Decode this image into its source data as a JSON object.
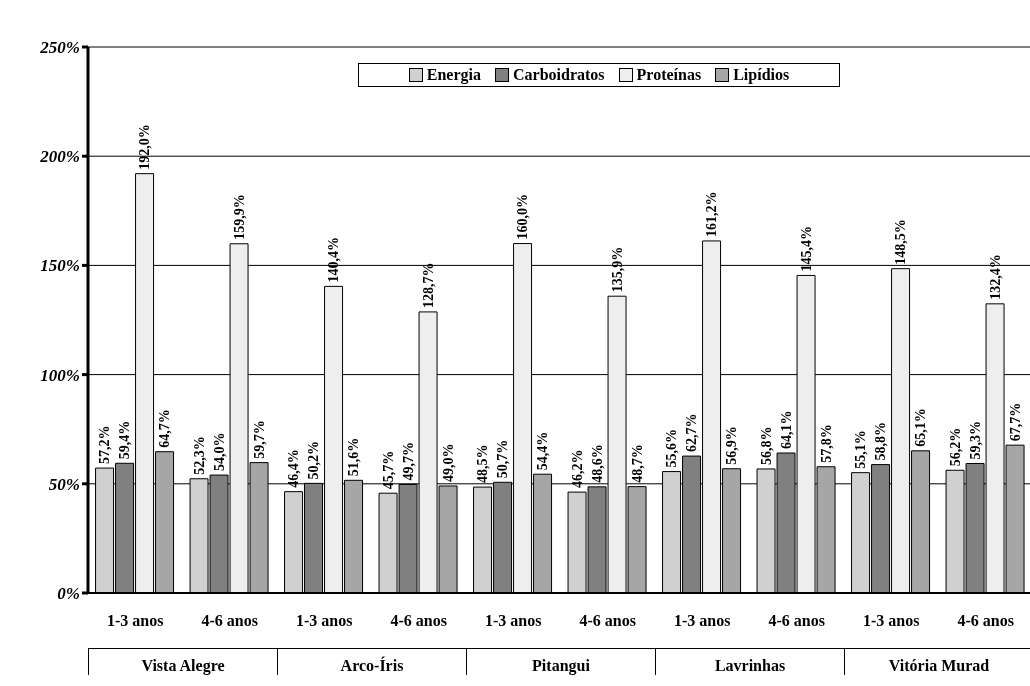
{
  "chart_data": {
    "type": "bar",
    "categories": [
      "1-3 anos",
      "4-6 anos",
      "1-3 anos",
      "4-6 anos",
      "1-3 anos",
      "4-6 anos",
      "1-3 anos",
      "4-6 anos",
      "1-3 anos",
      "4-6 anos"
    ],
    "annotations": [
      "Vista Alegre",
      "Arco-Íris",
      "Pitangui",
      "Lavrinhas",
      "Vitória Murad"
    ],
    "series": [
      {
        "name": "Energia",
        "color": "#d0d0d0",
        "values": [
          57.2,
          52.3,
          46.4,
          45.7,
          48.5,
          46.2,
          55.6,
          56.8,
          55.1,
          56.2
        ],
        "value_labels": [
          "57,2%",
          "52,3%",
          "46,4%",
          "45,7%",
          "48,5%",
          "46,2%",
          "55,6%",
          "56,8%",
          "55,1%",
          "56,2%"
        ]
      },
      {
        "name": "Carboidratos",
        "color": "#808080",
        "values": [
          59.4,
          54.0,
          50.2,
          49.7,
          50.7,
          48.6,
          62.7,
          64.1,
          58.8,
          59.3
        ],
        "value_labels": [
          "59,4%",
          "54,0%",
          "50,2%",
          "49,7%",
          "50,7%",
          "48,6%",
          "62,7%",
          "64,1%",
          "58,8%",
          "59,3%"
        ]
      },
      {
        "name": "Proteínas",
        "color": "#eeeeee",
        "values": [
          192.0,
          159.9,
          140.4,
          128.7,
          160.0,
          135.9,
          161.2,
          145.4,
          148.5,
          132.4
        ],
        "value_labels": [
          "192,0%",
          "159,9%",
          "140,4%",
          "128,7%",
          "160,0%",
          "135,9%",
          "161,2%",
          "145,4%",
          "148,5%",
          "132,4%"
        ]
      },
      {
        "name": "Lipídios",
        "color": "#a6a6a6",
        "values": [
          64.7,
          59.7,
          51.6,
          49.0,
          54.4,
          48.7,
          56.9,
          57.8,
          65.1,
          67.7
        ],
        "value_labels": [
          "64,7%",
          "59,7%",
          "51,6%",
          "49,0%",
          "54,4%",
          "48,7%",
          "56,9%",
          "57,8%",
          "65,1%",
          "67,7%"
        ]
      }
    ],
    "ylim": [
      0,
      250
    ],
    "yticks": [
      {
        "value": 0,
        "label": "0%"
      },
      {
        "value": 50,
        "label": "50%"
      },
      {
        "value": 100,
        "label": "100%"
      },
      {
        "value": 150,
        "label": "150%"
      },
      {
        "value": 200,
        "label": "200%"
      },
      {
        "value": 250,
        "label": "250%"
      }
    ],
    "grid": "y",
    "legend": "top"
  }
}
